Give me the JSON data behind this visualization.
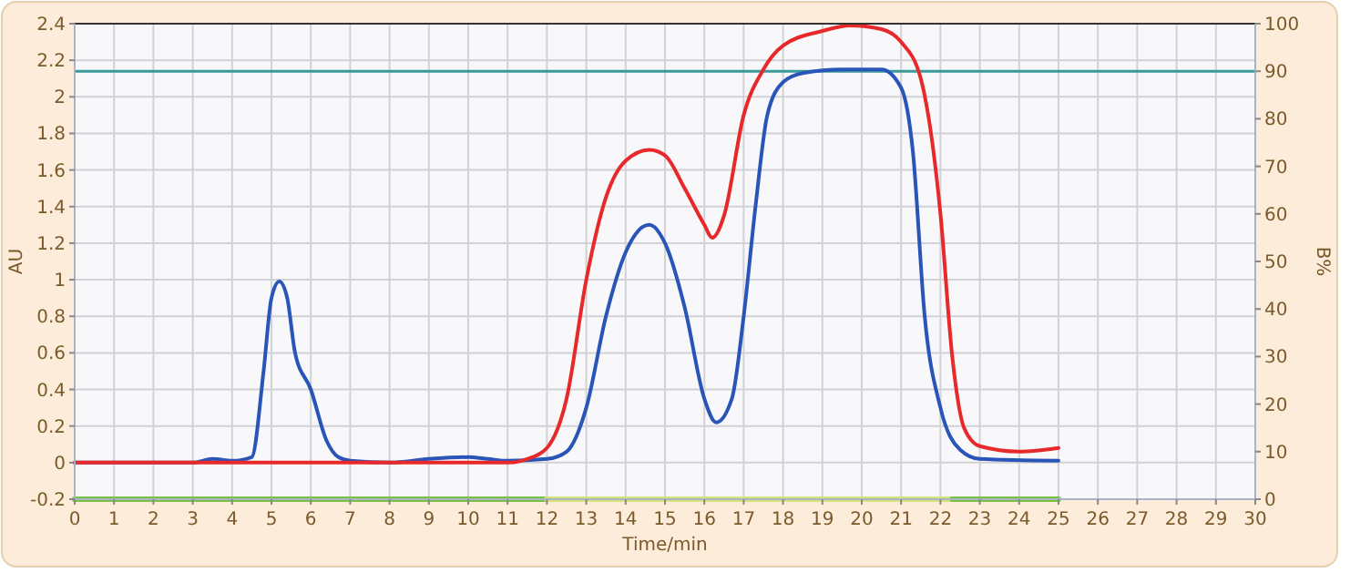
{
  "chart_data": {
    "type": "line",
    "xlabel": "Time/min",
    "ylabel": "AU",
    "y2label": "B%",
    "xlim": [
      0,
      30
    ],
    "xticks": [
      0,
      1,
      2,
      3,
      4,
      5,
      6,
      7,
      8,
      9,
      10,
      11,
      12,
      13,
      14,
      15,
      16,
      17,
      18,
      19,
      20,
      21,
      22,
      23,
      24,
      25,
      26,
      27,
      28,
      29,
      30
    ],
    "ylim": [
      -0.2,
      2.4
    ],
    "yticks": [
      -0.2,
      0,
      0.2,
      0.4,
      0.6,
      0.8,
      1,
      1.2,
      1.4,
      1.6,
      1.8,
      2,
      2.2,
      2.4
    ],
    "y2lim": [
      0,
      100
    ],
    "y2ticks": [
      0,
      10,
      20,
      30,
      40,
      50,
      60,
      70,
      80,
      90,
      100
    ],
    "grid": true,
    "line_style": "solid",
    "marker": "none",
    "series": [
      {
        "color": "#2a55b8",
        "x": [
          0,
          3,
          3.5,
          4,
          4.5,
          4.8,
          5,
          5.2,
          5.4,
          5.6,
          6,
          6.4,
          6.7,
          7,
          8,
          9,
          10,
          10.5,
          11,
          12,
          12.5,
          13,
          13.5,
          14,
          14.6,
          15,
          15.5,
          16,
          16.3,
          16.7,
          17,
          17.3,
          17.6,
          18,
          18.5,
          19.5,
          20.5,
          21,
          21.3,
          21.6,
          22,
          22.5,
          23,
          25
        ],
        "values": [
          0,
          0,
          0.02,
          0.01,
          0.03,
          0.5,
          0.9,
          0.99,
          0.9,
          0.6,
          0.4,
          0.12,
          0.03,
          0.01,
          0,
          0.02,
          0.03,
          0.02,
          0.01,
          0.02,
          0.06,
          0.3,
          0.8,
          1.15,
          1.3,
          1.2,
          0.85,
          0.35,
          0.22,
          0.35,
          0.8,
          1.4,
          1.9,
          2.08,
          2.13,
          2.15,
          2.15,
          2.05,
          1.7,
          0.8,
          0.3,
          0.07,
          0.02,
          0.01
        ]
      },
      {
        "color": "#e8292b",
        "x": [
          0,
          11,
          11.5,
          12,
          12.5,
          13,
          13.5,
          14,
          14.6,
          15,
          15.5,
          16,
          16.2,
          16.5,
          17,
          17.5,
          18,
          19,
          19.7,
          20.5,
          21,
          21.5,
          22,
          22.3,
          22.6,
          23,
          24,
          25
        ],
        "values": [
          0,
          0,
          0.02,
          0.08,
          0.35,
          1.0,
          1.45,
          1.65,
          1.71,
          1.68,
          1.5,
          1.3,
          1.23,
          1.35,
          1.9,
          2.15,
          2.28,
          2.36,
          2.39,
          2.37,
          2.3,
          2.1,
          1.36,
          0.58,
          0.19,
          0.09,
          0.06,
          0.08
        ]
      },
      {
        "color": "#7cc242",
        "x": [
          0,
          12
        ],
        "values": [
          -0.2,
          -0.2
        ]
      },
      {
        "color": "#d8e27a",
        "x": [
          12,
          22.3
        ],
        "values": [
          -0.2,
          -0.2
        ]
      },
      {
        "color": "#7cc242",
        "x": [
          22.3,
          25
        ],
        "values": [
          -0.2,
          -0.2
        ]
      }
    ],
    "ref_lines": [
      {
        "axis": "y2",
        "value": 90,
        "color": "#3a9a9a"
      }
    ]
  }
}
